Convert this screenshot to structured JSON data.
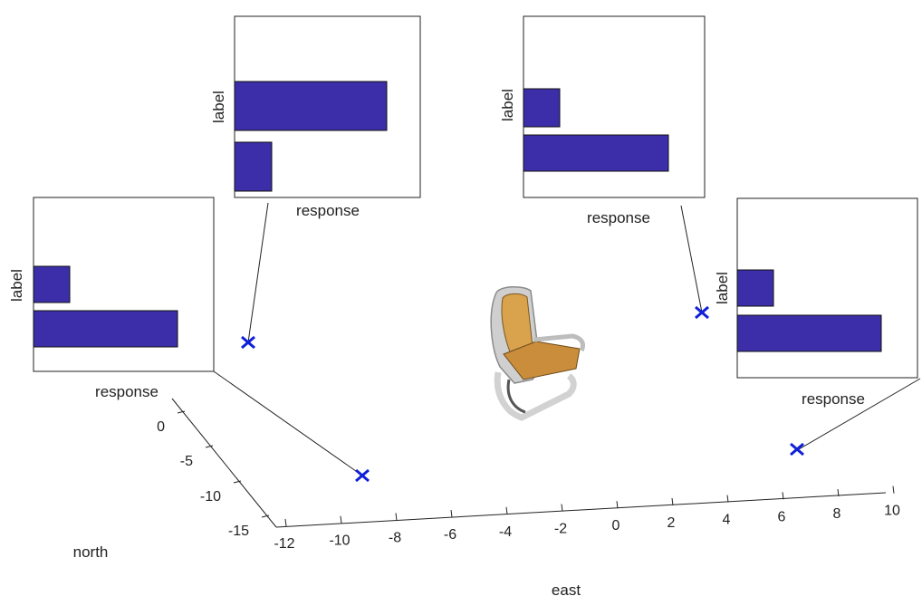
{
  "colors": {
    "bar_fill": "#3b2ea8",
    "marker": "#1020d8",
    "axis": "#222222",
    "seat": "#d9a24d",
    "frame": "#c9c9c9"
  },
  "axes": {
    "east_label": "east",
    "north_label": "north",
    "east_ticks": [
      "-12",
      "-10",
      "-8",
      "-6",
      "-4",
      "-2",
      "0",
      "2",
      "4",
      "6",
      "8",
      "10"
    ],
    "north_ticks": [
      "0",
      "-5",
      "-10",
      "-15"
    ]
  },
  "insets": [
    {
      "xlabel": "response",
      "ylabel": "label",
      "values": [
        0.2,
        0.8
      ],
      "marker_icon": "x-marker-icon"
    },
    {
      "xlabel": "response",
      "ylabel": "label",
      "values": [
        0.82,
        0.2
      ],
      "marker_icon": "x-marker-icon"
    },
    {
      "xlabel": "response",
      "ylabel": "label",
      "values": [
        0.2,
        0.8
      ],
      "marker_icon": "x-marker-icon"
    },
    {
      "xlabel": "response",
      "ylabel": "label",
      "values": [
        0.2,
        0.8
      ],
      "marker_icon": "x-marker-icon"
    }
  ],
  "object": {
    "icon": "chair-icon"
  }
}
